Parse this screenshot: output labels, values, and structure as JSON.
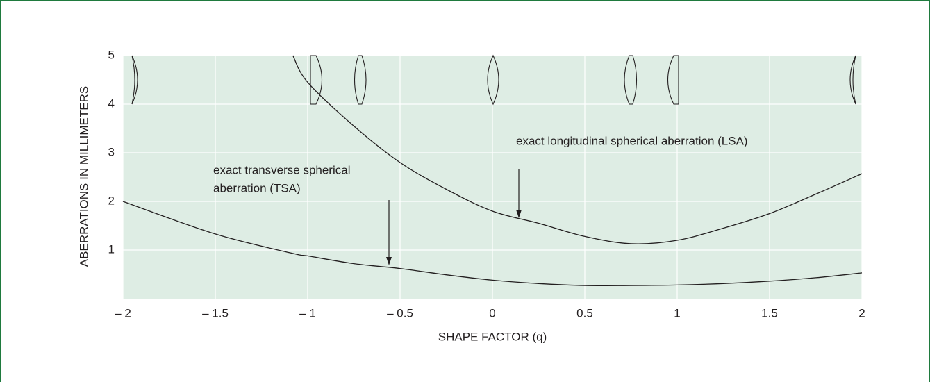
{
  "chart_data": {
    "type": "line",
    "xlabel": "SHAPE FACTOR (q)",
    "ylabel": "ABERRATIONS IN MILLIMETERS",
    "annotations": [
      "exact longitudinal spherical aberration (LSA)",
      "exact transverse spherical",
      "aberration (TSA)"
    ],
    "x": [
      -2,
      -1.5,
      -1.08,
      -1,
      -0.75,
      -0.5,
      -0.25,
      0,
      0.25,
      0.5,
      0.75,
      1,
      1.25,
      1.5,
      1.75,
      2
    ],
    "series": [
      {
        "color": "#231f20",
        "values": [
          null,
          null,
          5,
          4.45,
          3.55,
          2.8,
          2.25,
          1.8,
          1.55,
          1.28,
          1.13,
          1.2,
          1.45,
          1.75,
          2.15,
          2.57
        ]
      },
      {
        "color": "#231f20",
        "values": [
          2.0,
          1.33,
          0.93,
          0.88,
          0.72,
          0.62,
          0.49,
          0.38,
          0.31,
          0.27,
          0.27,
          0.28,
          0.31,
          0.36,
          0.43,
          0.53
        ]
      }
    ],
    "xlim": [
      -2,
      2
    ],
    "xticks": [
      {
        "value": -2,
        "label": "– 2"
      },
      {
        "value": -1.5,
        "label": "– 1.5"
      },
      {
        "value": -1,
        "label": "– 1"
      },
      {
        "value": -0.5,
        "label": "– 0.5"
      },
      0,
      0.5,
      1,
      1.5,
      2
    ],
    "ylim": [
      0,
      5
    ],
    "yticks": [
      1,
      2,
      3,
      4,
      5
    ],
    "grid": true
  }
}
